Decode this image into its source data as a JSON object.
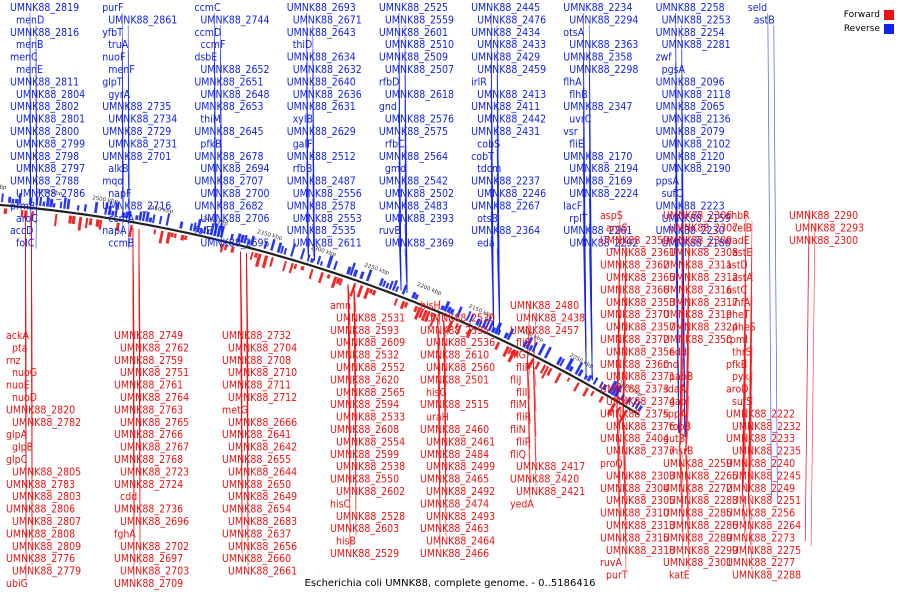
{
  "caption": "Escherichia coli UMNK88, complete genome. - 0..5186416",
  "legend": {
    "forward": {
      "label": "Forward",
      "color": "#ee1111"
    },
    "reverse": {
      "label": "Reverse",
      "color": "#1122ee"
    }
  },
  "ticks": [
    "2750 kbp",
    "2700 kbp",
    "2650 kbp",
    "2600 kbp",
    "2550 kbp",
    "2500 kbp",
    "2450 kbp",
    "2400 kbp",
    "2350 kbp",
    "2300 kbp",
    "2250 kbp",
    "2200 kbp",
    "2150 kbp",
    "2100 kbp",
    "2050 kbp",
    "2000 kbp"
  ],
  "labels_reverse": [
    "UMNK88_2819",
    "menD",
    "UMNK88_2816",
    "menB",
    "menC",
    "menE",
    "UMNK88_2811",
    "UMNK88_2804",
    "UMNK88_2802",
    "UMNK88_2801",
    "UMNK88_2800",
    "UMNK88_2799",
    "UMNK88_2798",
    "UMNK88_2797",
    "UMNK88_2788",
    "UMNK88_2786",
    "prmB",
    "aroC",
    "accD",
    "folC",
    "purF",
    "UMNK88_2861",
    "yfbT",
    "truA",
    "nuoF",
    "menF",
    "glpT",
    "gyrA",
    "UMNK88_2735",
    "UMNK88_2734",
    "UMNK88_2729",
    "UMNK88_2731",
    "UMNK88_2701",
    "alkB",
    "mqo",
    "napF",
    "UMNK88_2716",
    "ccmA",
    "napA",
    "ccmB",
    "ccmC",
    "UMNK88_2744",
    "ccmD",
    "ccmF",
    "dsbE",
    "UMNK88_2652",
    "UMNK88_2651",
    "UMNK88_2648",
    "UMNK88_2653",
    "thiM",
    "UMNK88_2645",
    "pfkB",
    "UMNK88_2678",
    "UMNK88_2694",
    "UMNK88_2707",
    "UMNK88_2700",
    "UMNK88_2682",
    "UMNK88_2706",
    "folE",
    "UMNK88_2695",
    "UMNK88_2693",
    "UMNK88_2671",
    "UMNK88_2643",
    "thiD",
    "UMNK88_2634",
    "UMNK88_2632",
    "UMNK88_2640",
    "UMNK88_2636",
    "UMNK88_2631",
    "xylB",
    "UMNK88_2629",
    "galF",
    "UMNK88_2512",
    "rfbB",
    "UMNK88_2487",
    "UMNK88_2556",
    "UMNK88_2578",
    "UMNK88_2553",
    "UMNK88_2535",
    "UMNK88_2611",
    "UMNK88_2525",
    "UMNK88_2559",
    "UMNK88_2601",
    "UMNK88_2510",
    "UMNK88_2509",
    "UMNK88_2507",
    "rfbD",
    "UMNK88_2618",
    "gnd",
    "UMNK88_2576",
    "UMNK88_2575",
    "rfbC",
    "UMNK88_2564",
    "gmd",
    "UMNK88_2542",
    "UMNK88_2502",
    "UMNK88_2483",
    "UMNK88_2393",
    "ruvB",
    "UMNK88_2369",
    "UMNK88_2445",
    "UMNK88_2476",
    "UMNK88_2434",
    "UMNK88_2433",
    "UMNK88_2429",
    "UMNK88_2459",
    "irlR",
    "UMNK88_2413",
    "UMNK88_2411",
    "UMNK88_2442",
    "UMNK88_2431",
    "cobS",
    "cobT",
    "tdcm",
    "UMNK88_2237",
    "UMNK88_2246",
    "UMNK88_2267",
    "otsB",
    "UMNK88_2364",
    "eda",
    "UMNK88_2234",
    "UMNK88_2294",
    "otsA",
    "UMNK88_2363",
    "UMNK88_2358",
    "UMNK88_2298",
    "flhA",
    "flhB",
    "UMNK88_2347",
    "uvrC",
    "vsr",
    "fliE",
    "UMNK88_2170",
    "UMNK88_2194",
    "UMNK88_2169",
    "UMNK88_2224",
    "lacF",
    "rplT",
    "UMNK88_2261",
    "UMNK88_2292",
    "UMNK88_2258",
    "UMNK88_2253",
    "UMNK88_2254",
    "UMNK88_2281",
    "zwf",
    "pgsA",
    "UMNK88_2096",
    "UMNK88_2118",
    "UMNK88_2065",
    "UMNK88_2136",
    "UMNK88_2079",
    "UMNK88_2102",
    "UMNK88_2120",
    "UMNK88_2190",
    "ppsA",
    "sufC",
    "UMNK88_2223",
    "UMNK88_2159",
    "UMNK88_2230",
    "UMNK88_2186",
    "seld",
    "astB"
  ],
  "labels_forward_left": [
    "ackA",
    "pta",
    "rnz",
    "nuoG",
    "nuoE",
    "nuoD",
    "UMNK88_2820",
    "UMNK88_2782",
    "glpA",
    "glpB",
    "glpC",
    "UMNK88_2805",
    "UMNK88_2783",
    "UMNK88_2803",
    "UMNK88_2806",
    "UMNK88_2807",
    "UMNK88_2808",
    "UMNK88_2809",
    "UMNK88_2776",
    "UMNK88_2779",
    "ubiG",
    "UMNK88_2749",
    "UMNK88_2762",
    "UMNK88_2759",
    "UMNK88_2751",
    "UMNK88_2761",
    "UMNK88_2764",
    "UMNK88_2763",
    "UMNK88_2765",
    "UMNK88_2766",
    "UMNK88_2767",
    "UMNK88_2768",
    "UMNK88_2723",
    "UMNK88_2724",
    "cdd",
    "UMNK88_2736",
    "UMNK88_2696",
    "fghA",
    "UMNK88_2702",
    "UMNK88_2697",
    "UMNK88_2703",
    "UMNK88_2709",
    "UMNK88_2732",
    "UMNK88_2704",
    "UMNK88_2708",
    "UMNK88_2710",
    "UMNK88_2711",
    "UMNK88_2712",
    "metG",
    "UMNK88_2666",
    "UMNK88_2641",
    "UMNK88_2642",
    "UMNK88_2655",
    "UMNK88_2644",
    "UMNK88_2650",
    "UMNK88_2649",
    "UMNK88_2654",
    "UMNK88_2683",
    "UMNK88_2637",
    "UMNK88_2656",
    "UMNK88_2660",
    "UMNK88_2661"
  ],
  "labels_forward_mid": [
    "amn",
    "UMNK88_2531",
    "UMNK88_2593",
    "UMNK88_2609",
    "UMNK88_2532",
    "UMNK88_2552",
    "UMNK88_2620",
    "UMNK88_2565",
    "UMNK88_2594",
    "UMNK88_2533",
    "UMNK88_2608",
    "UMNK88_2554",
    "UMNK88_2599",
    "UMNK88_2538",
    "UMNK88_2550",
    "UMNK88_2602",
    "hisC",
    "UMNK88_2528",
    "UMNK88_2603",
    "hisB",
    "UMNK88_2529",
    "hisH",
    "UMNK88_2530",
    "UMNK88_2595",
    "UMNK88_2536",
    "UMNK88_2610",
    "UMNK88_2560",
    "UMNK88_2501",
    "hisG",
    "UMNK88_2515",
    "uraH",
    "UMNK88_2460",
    "UMNK88_2461",
    "UMNK88_2484",
    "UMNK88_2499",
    "UMNK88_2465",
    "UMNK88_2492",
    "UMNK88_2474",
    "UMNK88_2493",
    "UMNK88_2463",
    "UMNK88_2464",
    "UMNK88_2466",
    "UMNK88_2480",
    "UMNK88_2438",
    "UMNK88_2457",
    "fliS",
    "fliG",
    "fliF",
    "fliJ",
    "fliI",
    "fliM",
    "fliR",
    "fliN",
    "fliP",
    "fliQ",
    "UMNK88_2417",
    "UMNK88_2420",
    "UMNK88_2421",
    "yedA"
  ],
  "labels_forward_right": [
    "aspS",
    "argS",
    "UMNK88_2359",
    "UMNK88_2361",
    "UMNK88_2362",
    "UMNK88_2365",
    "UMNK88_2366",
    "UMNK88_2353",
    "UMNK88_2370",
    "UMNK88_2357",
    "UMNK88_2372",
    "UMNK88_2356",
    "UMNK88_2360",
    "UMNK88_2371",
    "UMNK88_2373",
    "UMNK88_2374",
    "UMNK88_2375",
    "UMNK88_2376",
    "UMNK88_2404",
    "UMNK88_2377",
    "proQ",
    "UMNK88_2303",
    "UMNK88_2304",
    "UMNK88_2305",
    "UMNK88_2310",
    "UMNK88_2313",
    "UMNK88_2315",
    "UMNK88_2318",
    "ruvA",
    "purT",
    "UMNK88_2306",
    "UMNK88_2307",
    "UMNK88_2309",
    "UMNK88_2308",
    "UMNK88_2311",
    "UMNK88_2312",
    "UMNK88_2316",
    "UMNK88_2317",
    "UMNK88_2319",
    "UMNK88_2324",
    "UMNK88_2350",
    "edd",
    "rnd",
    "pabB",
    "sdaA",
    "gap",
    "sppA",
    "topB",
    "gutB",
    "msrB",
    "UMNK88_2259",
    "UMNK88_2265",
    "UMNK88_2272",
    "UMNK88_2283",
    "UMNK88_2285",
    "UMNK88_2286",
    "UMNK88_2289",
    "UMNK88_2299",
    "UMNK88_2301",
    "katE",
    "chbR",
    "celB",
    "nadE",
    "astE",
    "astD",
    "astA",
    "astC",
    "ihfA",
    "pheT",
    "pheS",
    "rpmI",
    "thrS",
    "pfkB",
    "pyk",
    "aroD",
    "sufS",
    "UMNK88_2222",
    "UMNK88_2232",
    "UMNK88_2233",
    "UMNK88_2235",
    "UMNK88_2240",
    "UMNK88_2245",
    "UMNK88_2249",
    "UMNK88_2251",
    "UMNK88_2256",
    "UMNK88_2264",
    "UMNK88_2273",
    "UMNK88_2275",
    "UMNK88_2277",
    "UMNK88_2288",
    "UMNK88_2290",
    "UMNK88_2293",
    "UMNK88_2300"
  ]
}
